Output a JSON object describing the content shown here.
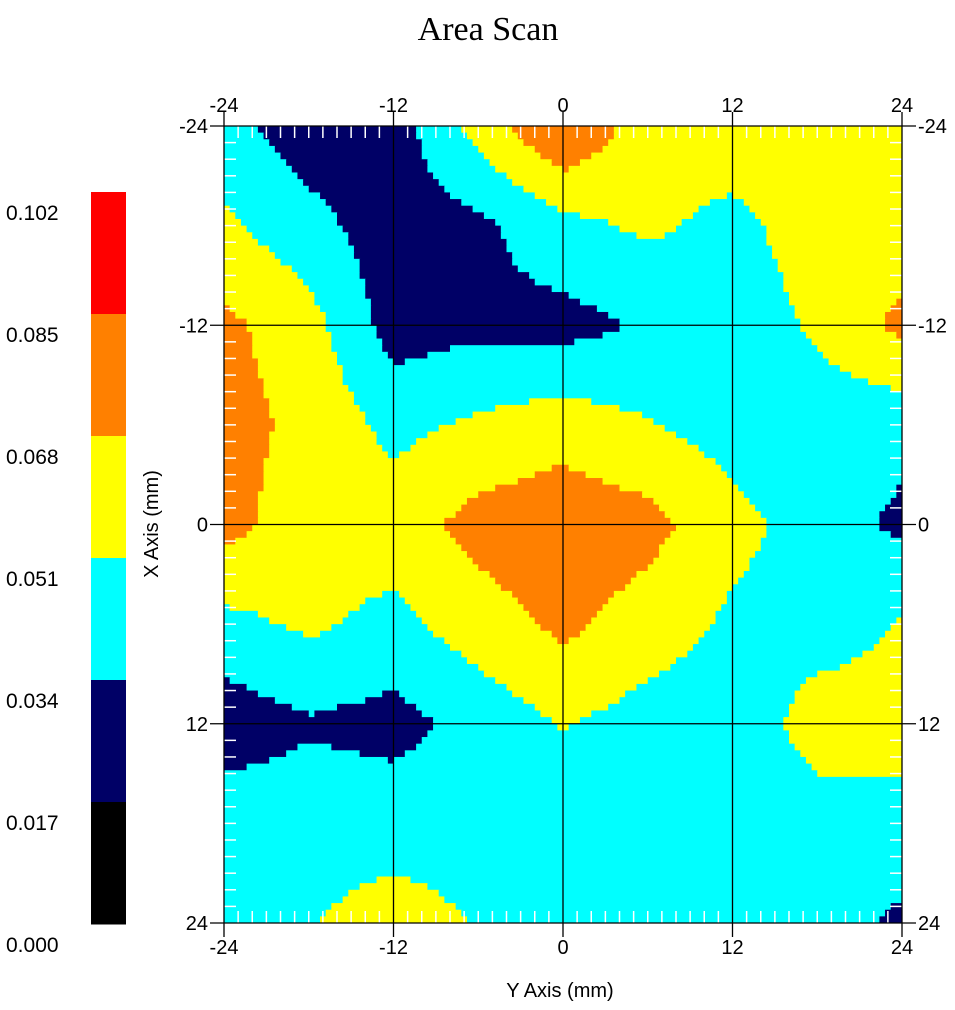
{
  "chart_data": {
    "type": "heatmap",
    "title": "Area Scan",
    "xlabel": "Y Axis (mm)",
    "ylabel": "X Axis (mm)",
    "x_ticks": [
      -24,
      -12,
      0,
      12,
      24
    ],
    "y_ticks": [
      -24,
      -12,
      0,
      12,
      24
    ],
    "xlim": [
      -24,
      24
    ],
    "ylim": [
      -24,
      24
    ],
    "grid": true,
    "colorbar": {
      "placement": "left",
      "labels": [
        "0.102",
        "0.085",
        "0.068",
        "0.051",
        "0.034",
        "0.017",
        "0.000"
      ],
      "bands": [
        {
          "min": 0.0,
          "max": 0.017,
          "color": "#000000"
        },
        {
          "min": 0.017,
          "max": 0.034,
          "color": "#000066"
        },
        {
          "min": 0.034,
          "max": 0.051,
          "color": "#00ffff"
        },
        {
          "min": 0.051,
          "max": 0.068,
          "color": "#ffff00"
        },
        {
          "min": 0.068,
          "max": 0.085,
          "color": "#ff8000"
        },
        {
          "min": 0.085,
          "max": 0.102,
          "color": "#ff0000"
        }
      ]
    },
    "x": [
      -24,
      -18,
      -12,
      -6,
      0,
      6,
      12,
      18,
      24
    ],
    "y": [
      -24,
      -18,
      -12,
      -6,
      0,
      6,
      12,
      18,
      24
    ],
    "z": [
      [
        0.04,
        0.024,
        0.026,
        0.058,
        0.086,
        0.058,
        0.062,
        0.06,
        0.062
      ],
      [
        0.054,
        0.04,
        0.024,
        0.03,
        0.046,
        0.054,
        0.046,
        0.06,
        0.06
      ],
      [
        0.072,
        0.058,
        0.026,
        0.03,
        0.028,
        0.036,
        0.04,
        0.054,
        0.072
      ],
      [
        0.074,
        0.064,
        0.046,
        0.054,
        0.06,
        0.052,
        0.044,
        0.042,
        0.04
      ],
      [
        0.074,
        0.058,
        0.06,
        0.074,
        0.08,
        0.074,
        0.056,
        0.044,
        0.03
      ],
      [
        0.046,
        0.054,
        0.046,
        0.06,
        0.072,
        0.06,
        0.048,
        0.044,
        0.052
      ],
      [
        0.024,
        0.032,
        0.028,
        0.04,
        0.052,
        0.044,
        0.04,
        0.058,
        0.056
      ],
      [
        0.044,
        0.044,
        0.044,
        0.044,
        0.044,
        0.044,
        0.044,
        0.044,
        0.046
      ],
      [
        0.04,
        0.05,
        0.058,
        0.05,
        0.044,
        0.044,
        0.044,
        0.044,
        0.03
      ]
    ]
  }
}
